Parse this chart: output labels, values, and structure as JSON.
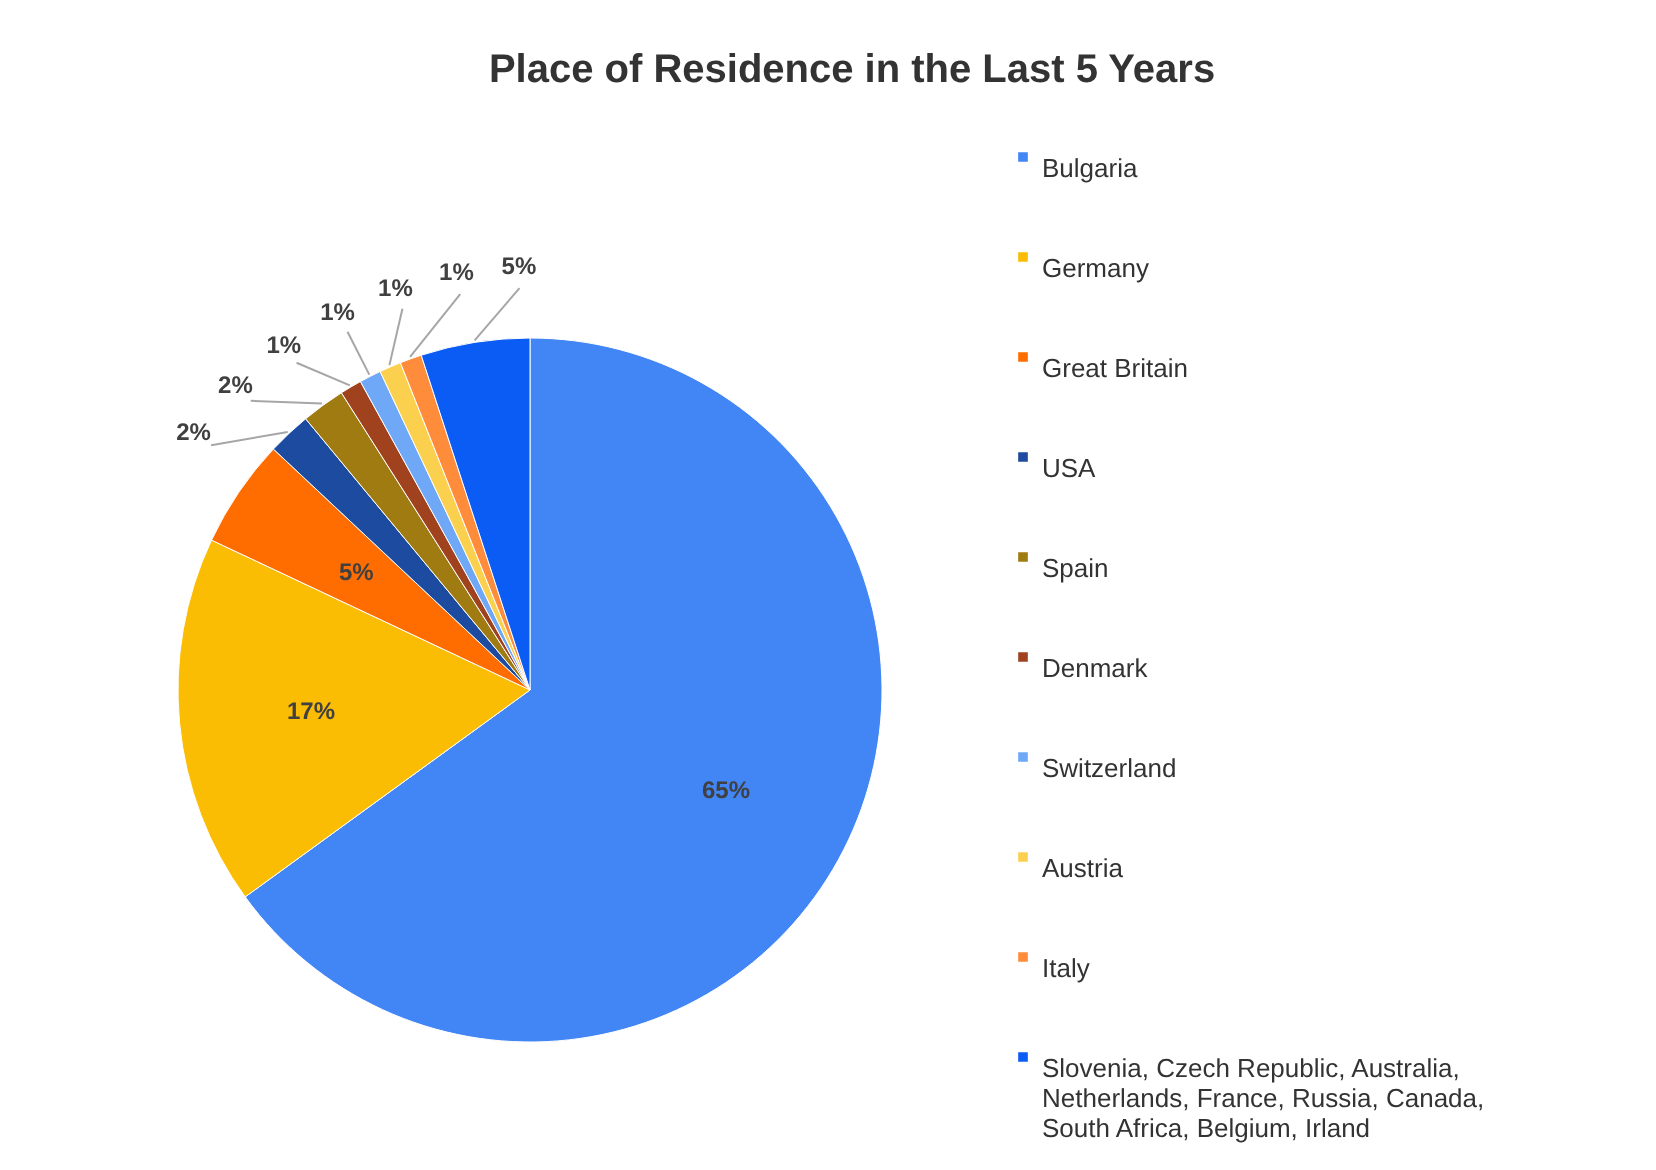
{
  "chart_data": {
    "type": "pie",
    "title": "Place of Residence in the Last 5 Years",
    "categories": [
      "Bulgaria",
      "Germany",
      "Great Britain",
      "USA",
      "Spain",
      "Denmark",
      "Switzerland",
      "Austria",
      "Italy",
      "Slovenia, Czech Republic, Australia, Netherlands, France, Russia, Canada, South Africa, Belgium, Irland"
    ],
    "values": [
      65,
      17,
      5,
      2,
      2,
      1,
      1,
      1,
      1,
      5
    ],
    "colors": [
      "#4285f4",
      "#fbbc04",
      "#ff6d01",
      "#1c4ba0",
      "#a07b12",
      "#a0421e",
      "#6fa8f6",
      "#fcd04f",
      "#ff8c3a",
      "#0b5cf5"
    ],
    "value_labels": [
      "65%",
      "17%",
      "5%",
      "2%",
      "2%",
      "1%",
      "1%",
      "1%",
      "1%",
      "5%"
    ],
    "legend": "right"
  }
}
